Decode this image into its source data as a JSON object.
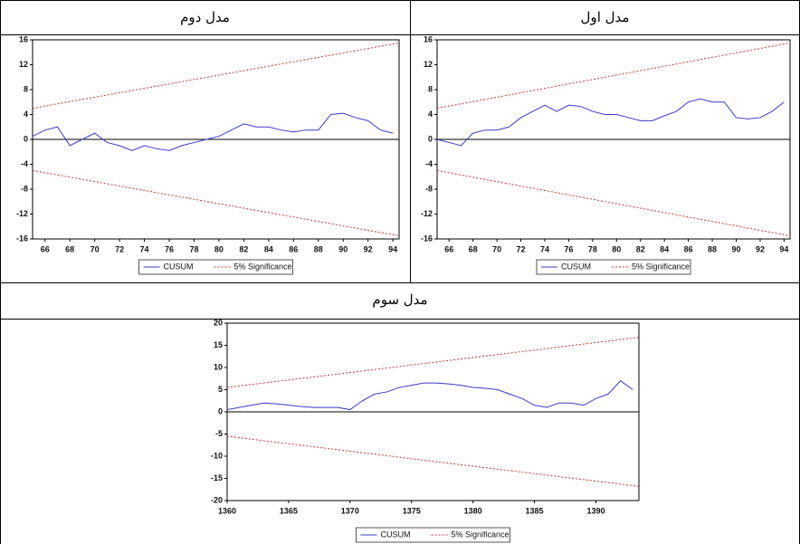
{
  "chart_data": [
    {
      "type": "line",
      "title": "مدل اول",
      "x": [
        65,
        66,
        67,
        68,
        69,
        70,
        71,
        72,
        73,
        74,
        75,
        76,
        77,
        78,
        79,
        80,
        81,
        82,
        83,
        84,
        85,
        86,
        87,
        88,
        89,
        90,
        91,
        92,
        93,
        94
      ],
      "xlim": [
        65,
        94.5
      ],
      "xticks": [
        66,
        68,
        70,
        72,
        74,
        76,
        78,
        80,
        82,
        84,
        86,
        88,
        90,
        92,
        94
      ],
      "ylim": [
        -16,
        16
      ],
      "yticks": [
        -16,
        -12,
        -8,
        -4,
        0,
        4,
        8,
        12,
        16
      ],
      "series": [
        {
          "name": "CUSUM",
          "color": "#3a3acc",
          "values": [
            0,
            -0.5,
            -1,
            1,
            1.5,
            1.5,
            2,
            3.5,
            4.5,
            5.5,
            4.5,
            5.5,
            5.3,
            4.5,
            4,
            4,
            3.5,
            3,
            3,
            3.8,
            4.5,
            6,
            6.5,
            6,
            6,
            3.5,
            3.3,
            3.5,
            4.5,
            6
          ]
        },
        {
          "name": "5% Significance",
          "color": "#cc3333",
          "x": [
            65,
            94.5
          ],
          "values": [
            5,
            15.5
          ],
          "lower": [
            -5,
            -15.5
          ]
        }
      ]
    },
    {
      "type": "line",
      "title": "مدل دوم",
      "x": [
        65,
        66,
        67,
        68,
        69,
        70,
        71,
        72,
        73,
        74,
        75,
        76,
        77,
        78,
        79,
        80,
        81,
        82,
        83,
        84,
        85,
        86,
        87,
        88,
        89,
        90,
        91,
        92,
        93,
        94
      ],
      "xlim": [
        65,
        94.5
      ],
      "xticks": [
        66,
        68,
        70,
        72,
        74,
        76,
        78,
        80,
        82,
        84,
        86,
        88,
        90,
        92,
        94
      ],
      "ylim": [
        -16,
        16
      ],
      "yticks": [
        -16,
        -12,
        -8,
        -4,
        0,
        4,
        8,
        12,
        16
      ],
      "series": [
        {
          "name": "CUSUM",
          "color": "#3a3acc",
          "values": [
            0.5,
            1.5,
            2,
            -1,
            0,
            1,
            -0.5,
            -1,
            -1.8,
            -1,
            -1.5,
            -1.8,
            -1,
            -0.5,
            0,
            0.5,
            1.5,
            2.5,
            2,
            2,
            1.5,
            1.2,
            1.5,
            1.5,
            4,
            4.2,
            3.5,
            3,
            1.5,
            1
          ]
        },
        {
          "name": "5% Significance",
          "color": "#cc3333",
          "x": [
            65,
            94.5
          ],
          "values": [
            5,
            15.5
          ],
          "lower": [
            -5,
            -15.5
          ]
        }
      ]
    },
    {
      "type": "line",
      "title": "مدل سوم",
      "x": [
        1360,
        1361,
        1362,
        1363,
        1364,
        1365,
        1366,
        1367,
        1368,
        1369,
        1370,
        1371,
        1372,
        1373,
        1374,
        1375,
        1376,
        1377,
        1378,
        1379,
        1380,
        1381,
        1382,
        1383,
        1384,
        1385,
        1386,
        1387,
        1388,
        1389,
        1390,
        1391,
        1392,
        1393
      ],
      "xlim": [
        1360,
        1393.5
      ],
      "xticks": [
        1360,
        1365,
        1370,
        1375,
        1380,
        1385,
        1390
      ],
      "ylim": [
        -20,
        20
      ],
      "yticks": [
        -20,
        -15,
        -10,
        -5,
        0,
        5,
        10,
        15,
        20
      ],
      "series": [
        {
          "name": "CUSUM",
          "color": "#3a3acc",
          "values": [
            0.5,
            1,
            1.5,
            2,
            1.8,
            1.5,
            1.2,
            1,
            1,
            1,
            0.5,
            2.5,
            4,
            4.5,
            5.5,
            6,
            6.5,
            6.5,
            6.3,
            6,
            5.5,
            5.3,
            5,
            4,
            3,
            1.5,
            1,
            2,
            2,
            1.5,
            3,
            4,
            7,
            5
          ]
        },
        {
          "name": "5% Significance",
          "color": "#cc3333",
          "x": [
            1360,
            1393.5
          ],
          "values": [
            5.5,
            16.8
          ],
          "lower": [
            -5.5,
            -16.8
          ]
        }
      ]
    }
  ]
}
